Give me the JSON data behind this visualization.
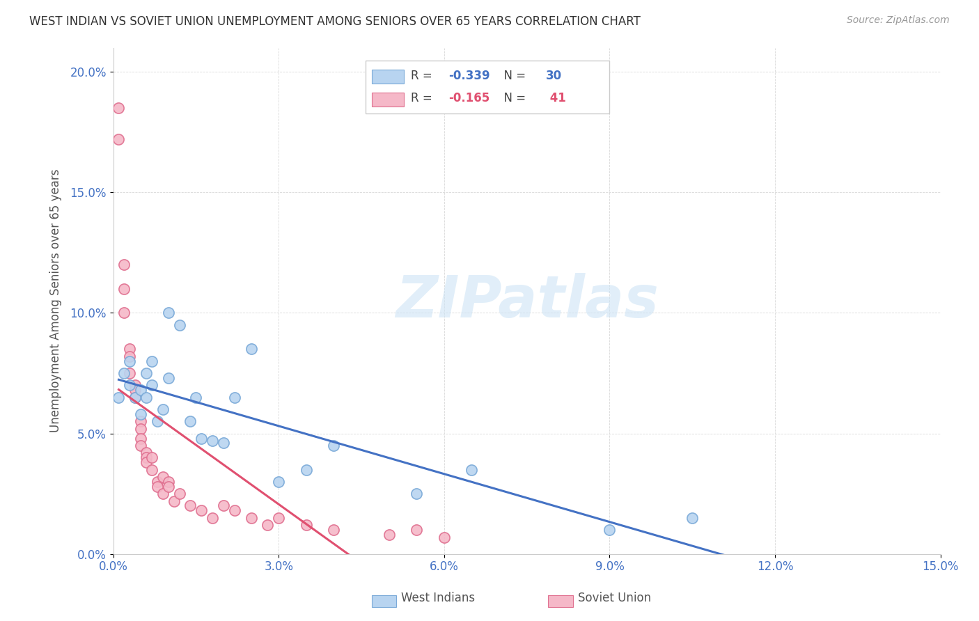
{
  "title": "WEST INDIAN VS SOVIET UNION UNEMPLOYMENT AMONG SENIORS OVER 65 YEARS CORRELATION CHART",
  "source": "Source: ZipAtlas.com",
  "ylabel": "Unemployment Among Seniors over 65 years",
  "xlim": [
    0.0,
    0.15
  ],
  "ylim": [
    0.0,
    0.21
  ],
  "xticks": [
    0.0,
    0.03,
    0.06,
    0.09,
    0.12,
    0.15
  ],
  "yticks": [
    0.0,
    0.05,
    0.1,
    0.15,
    0.2
  ],
  "west_indian_x": [
    0.001,
    0.002,
    0.003,
    0.003,
    0.004,
    0.005,
    0.005,
    0.006,
    0.006,
    0.007,
    0.007,
    0.008,
    0.009,
    0.01,
    0.01,
    0.012,
    0.014,
    0.015,
    0.016,
    0.018,
    0.02,
    0.022,
    0.025,
    0.03,
    0.035,
    0.04,
    0.055,
    0.065,
    0.09,
    0.105
  ],
  "west_indian_y": [
    0.065,
    0.075,
    0.08,
    0.07,
    0.065,
    0.068,
    0.058,
    0.075,
    0.065,
    0.08,
    0.07,
    0.055,
    0.06,
    0.1,
    0.073,
    0.095,
    0.055,
    0.065,
    0.048,
    0.047,
    0.046,
    0.065,
    0.085,
    0.03,
    0.035,
    0.045,
    0.025,
    0.035,
    0.01,
    0.015
  ],
  "soviet_x": [
    0.001,
    0.001,
    0.002,
    0.002,
    0.002,
    0.003,
    0.003,
    0.003,
    0.004,
    0.004,
    0.004,
    0.005,
    0.005,
    0.005,
    0.005,
    0.006,
    0.006,
    0.006,
    0.007,
    0.007,
    0.008,
    0.008,
    0.009,
    0.009,
    0.01,
    0.01,
    0.011,
    0.012,
    0.014,
    0.016,
    0.018,
    0.02,
    0.022,
    0.025,
    0.028,
    0.03,
    0.035,
    0.04,
    0.05,
    0.055,
    0.06
  ],
  "soviet_y": [
    0.185,
    0.172,
    0.12,
    0.11,
    0.1,
    0.085,
    0.082,
    0.075,
    0.07,
    0.068,
    0.065,
    0.055,
    0.052,
    0.048,
    0.045,
    0.042,
    0.04,
    0.038,
    0.04,
    0.035,
    0.03,
    0.028,
    0.032,
    0.025,
    0.03,
    0.028,
    0.022,
    0.025,
    0.02,
    0.018,
    0.015,
    0.02,
    0.018,
    0.015,
    0.012,
    0.015,
    0.012,
    0.01,
    0.008,
    0.01,
    0.007
  ],
  "west_indian_face_color": "#b8d4f0",
  "west_indian_edge_color": "#7baad8",
  "soviet_face_color": "#f5b8c8",
  "soviet_edge_color": "#e07090",
  "west_indian_line_color": "#4472c4",
  "soviet_line_color": "#e05070",
  "west_indian_R": "-0.339",
  "west_indian_N": "30",
  "soviet_R": "-0.165",
  "soviet_N": "41",
  "background_color": "#ffffff",
  "grid_color": "#d8d8d8",
  "title_color": "#333333",
  "axis_label_color": "#555555",
  "tick_color": "#4472c4",
  "watermark_text": "ZIPatlas",
  "watermark_color": "#cde4f5",
  "watermark_alpha": 0.6
}
